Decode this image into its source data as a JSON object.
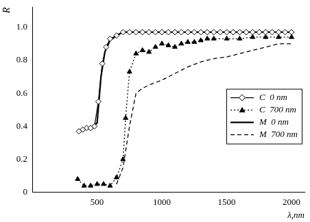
{
  "chart_data": {
    "type": "line",
    "x_label": "λ,nm",
    "y_label": "R",
    "xlim": [
      0,
      2100
    ],
    "xticks": [
      500,
      1000,
      1500,
      2000
    ],
    "ylim": [
      0,
      1.12
    ],
    "yticks": [
      0,
      0.2,
      0.4,
      0.6,
      0.8,
      {
        "value": 1,
        "label": "1.0"
      }
    ],
    "grid": false,
    "legend": "right",
    "series": [
      {
        "name": "C  0 nm",
        "color": "#000000",
        "marker": "diamond_open",
        "line_style": "solid",
        "x": [
          360,
          390,
          420,
          450,
          480,
          510,
          540,
          570,
          600,
          650,
          700,
          750,
          800,
          850,
          900,
          950,
          1000,
          1050,
          1100,
          1150,
          1200,
          1250,
          1300,
          1350,
          1400,
          1450,
          1500,
          1550,
          1600,
          1650,
          1700,
          1750,
          1800,
          1850,
          1900,
          1950,
          2000
        ],
        "values": [
          0.37,
          0.38,
          0.39,
          0.39,
          0.4,
          0.55,
          0.78,
          0.88,
          0.93,
          0.95,
          0.97,
          0.97,
          0.97,
          0.97,
          0.97,
          0.97,
          0.97,
          0.97,
          0.97,
          0.97,
          0.97,
          0.97,
          0.97,
          0.97,
          0.97,
          0.97,
          0.97,
          0.97,
          0.97,
          0.97,
          0.97,
          0.97,
          0.97,
          0.97,
          0.97,
          0.97,
          0.97
        ]
      },
      {
        "name": "C  700 nm",
        "color": "#000000",
        "marker": "triangle",
        "line_style": "dotted",
        "x": [
          350,
          400,
          450,
          500,
          550,
          600,
          650,
          700,
          720,
          750,
          800,
          850,
          900,
          950,
          1000,
          1050,
          1100,
          1150,
          1200,
          1250,
          1300,
          1350,
          1400,
          1500,
          1600,
          1700,
          1800,
          1900,
          2000
        ],
        "values": [
          0.08,
          0.04,
          0.04,
          0.05,
          0.05,
          0.04,
          0.09,
          0.2,
          0.45,
          0.73,
          0.84,
          0.86,
          0.85,
          0.88,
          0.9,
          0.89,
          0.88,
          0.9,
          0.91,
          0.91,
          0.92,
          0.93,
          0.93,
          0.93,
          0.93,
          0.94,
          0.94,
          0.94,
          0.94
        ]
      },
      {
        "name": "M  0 nm",
        "color": "#000000",
        "marker": "none",
        "line_style": "solid",
        "x": [
          360,
          400,
          450,
          500,
          530,
          560,
          600,
          650,
          700,
          800,
          1000,
          1500,
          2000
        ],
        "values": [
          0.37,
          0.38,
          0.39,
          0.42,
          0.7,
          0.85,
          0.92,
          0.95,
          0.97,
          0.97,
          0.97,
          0.97,
          0.97
        ]
      },
      {
        "name": "M  700 nm",
        "color": "#000000",
        "marker": "none",
        "line_style": "dashed",
        "x": [
          650,
          700,
          750,
          800,
          850,
          900,
          1000,
          1100,
          1200,
          1300,
          1400,
          1500,
          1600,
          1700,
          1800,
          1900,
          2000
        ],
        "values": [
          0.05,
          0.15,
          0.4,
          0.6,
          0.63,
          0.65,
          0.68,
          0.72,
          0.76,
          0.79,
          0.81,
          0.82,
          0.84,
          0.86,
          0.88,
          0.9,
          0.9
        ]
      }
    ]
  }
}
